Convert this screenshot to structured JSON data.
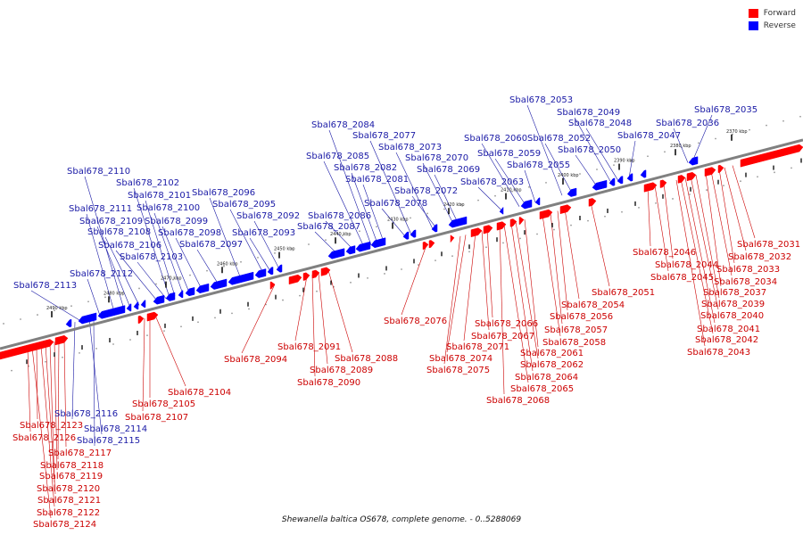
{
  "caption": "Shewanella baltica OS678, complete genome. - 0..5288069",
  "legend": {
    "forward_label": "Forward",
    "reverse_label": "Reverse",
    "forward_color": "#ff0000",
    "reverse_color": "#0000ff",
    "forward_text_color": "#cc0000",
    "reverse_text_color": "#1a1aa6"
  },
  "axis": {
    "backbone_color": "#808080",
    "tick_labels": [
      "2370 kbp",
      "2380 kbp",
      "2390 kbp",
      "2400 kbp",
      "2410 kbp",
      "2420 kbp",
      "2430 kbp",
      "2440 kbp",
      "2450 kbp",
      "2460 kbp",
      "2470 kbp",
      "2480 kbp",
      "2490 kbp"
    ]
  },
  "reverse_genes": [
    "Sbal678_2035",
    "Sbal678_2036",
    "Sbal678_2047",
    "Sbal678_2048",
    "Sbal678_2049",
    "Sbal678_2050",
    "Sbal678_2052",
    "Sbal678_2053",
    "Sbal678_2055",
    "Sbal678_2059",
    "Sbal678_2060",
    "Sbal678_2063",
    "Sbal678_2069",
    "Sbal678_2070",
    "Sbal678_2072",
    "Sbal678_2073",
    "Sbal678_2077",
    "Sbal678_2078",
    "Sbal678_2081",
    "Sbal678_2082",
    "Sbal678_2084",
    "Sbal678_2085",
    "Sbal678_2086",
    "Sbal678_2087",
    "Sbal678_2092",
    "Sbal678_2093",
    "Sbal678_2095",
    "Sbal678_2096",
    "Sbal678_2097",
    "Sbal678_2098",
    "Sbal678_2099",
    "Sbal678_2100",
    "Sbal678_2101",
    "Sbal678_2102",
    "Sbal678_2103",
    "Sbal678_2106",
    "Sbal678_2108",
    "Sbal678_2109",
    "Sbal678_2110",
    "Sbal678_2111",
    "Sbal678_2112",
    "Sbal678_2113",
    "Sbal678_2114",
    "Sbal678_2115",
    "Sbal678_2116"
  ],
  "forward_genes": [
    "Sbal678_2031",
    "Sbal678_2032",
    "Sbal678_2033",
    "Sbal678_2034",
    "Sbal678_2037",
    "Sbal678_2039",
    "Sbal678_2040",
    "Sbal678_2041",
    "Sbal678_2042",
    "Sbal678_2043",
    "Sbal678_2044",
    "Sbal678_2045",
    "Sbal678_2046",
    "Sbal678_2051",
    "Sbal678_2054",
    "Sbal678_2056",
    "Sbal678_2057",
    "Sbal678_2058",
    "Sbal678_2061",
    "Sbal678_2062",
    "Sbal678_2064",
    "Sbal678_2065",
    "Sbal678_2066",
    "Sbal678_2067",
    "Sbal678_2068",
    "Sbal678_2071",
    "Sbal678_2074",
    "Sbal678_2075",
    "Sbal678_2076",
    "Sbal678_2088",
    "Sbal678_2089",
    "Sbal678_2090",
    "Sbal678_2091",
    "Sbal678_2094",
    "Sbal678_2104",
    "Sbal678_2105",
    "Sbal678_2107",
    "Sbal678_2117",
    "Sbal678_2118",
    "Sbal678_2119",
    "Sbal678_2120",
    "Sbal678_2121",
    "Sbal678_2122",
    "Sbal678_2123",
    "Sbal678_2124",
    "Sbal678_2126"
  ]
}
